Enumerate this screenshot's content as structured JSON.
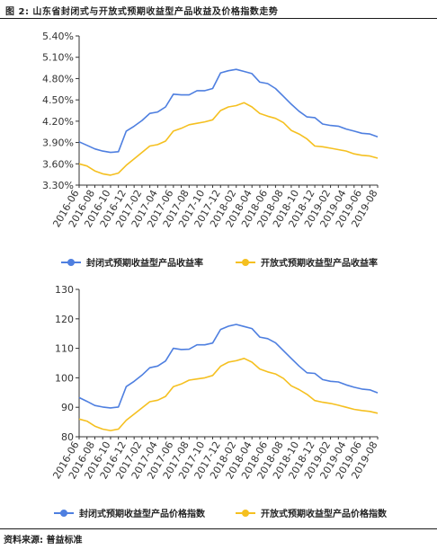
{
  "header": {
    "title": "图 2: 山东省封闭式与开放式预期收益型产品收益及价格指数走势"
  },
  "footer": {
    "source": "资料来源: 普益标准"
  },
  "colors": {
    "blue": "#4E7FE0",
    "orange": "#F5C020"
  },
  "chart_data": [
    {
      "type": "line",
      "x": [
        "2016-06",
        "2016-07",
        "2016-08",
        "2016-09",
        "2016-10",
        "2016-11",
        "2016-12",
        "2017-01",
        "2017-02",
        "2017-03",
        "2017-04",
        "2017-05",
        "2017-06",
        "2017-07",
        "2017-08",
        "2017-09",
        "2017-10",
        "2017-11",
        "2017-12",
        "2018-01",
        "2018-02",
        "2018-03",
        "2018-04",
        "2018-05",
        "2018-06",
        "2018-07",
        "2018-08",
        "2018-09",
        "2018-10",
        "2018-11",
        "2018-12",
        "2019-01",
        "2019-02",
        "2019-03",
        "2019-04",
        "2019-05",
        "2019-06",
        "2019-07",
        "2019-08"
      ],
      "x_tick_labels": [
        "2016-06",
        "2016-08",
        "2016-10",
        "2016-12",
        "2017-02",
        "2017-04",
        "2017-06",
        "2017-08",
        "2017-10",
        "2017-12",
        "2018-02",
        "2018-04",
        "2018-06",
        "2018-08",
        "2018-10",
        "2018-12",
        "2019-02",
        "2019-04",
        "2019-06",
        "2019-08"
      ],
      "y_tick_labels": [
        "3.30%",
        "3.60%",
        "3.90%",
        "4.20%",
        "4.50%",
        "4.80%",
        "5.10%",
        "5.40%"
      ],
      "ylim": [
        3.3,
        5.4
      ],
      "yticks": [
        3.3,
        3.6,
        3.9,
        4.2,
        4.5,
        4.8,
        5.1,
        5.4
      ],
      "grid": false,
      "legend_position": "bottom",
      "series": [
        {
          "name": "封闭式预期收益型产品收益率",
          "color": "#4E7FE0",
          "values": [
            3.91,
            3.86,
            3.81,
            3.78,
            3.76,
            3.77,
            4.06,
            4.13,
            4.21,
            4.31,
            4.33,
            4.4,
            4.58,
            4.57,
            4.57,
            4.63,
            4.63,
            4.66,
            4.88,
            4.91,
            4.93,
            4.9,
            4.87,
            4.75,
            4.73,
            4.66,
            4.55,
            4.44,
            4.34,
            4.26,
            4.25,
            4.16,
            4.14,
            4.13,
            4.09,
            4.06,
            4.03,
            4.02,
            3.98
          ]
        },
        {
          "name": "开放式预期收益型产品收益率",
          "color": "#F5C020",
          "values": [
            3.6,
            3.57,
            3.5,
            3.46,
            3.44,
            3.47,
            3.58,
            3.67,
            3.76,
            3.85,
            3.87,
            3.92,
            4.06,
            4.1,
            4.15,
            4.17,
            4.19,
            4.22,
            4.35,
            4.4,
            4.42,
            4.46,
            4.4,
            4.31,
            4.27,
            4.24,
            4.18,
            4.07,
            4.02,
            3.95,
            3.85,
            3.84,
            3.82,
            3.8,
            3.78,
            3.74,
            3.72,
            3.71,
            3.68
          ]
        }
      ]
    },
    {
      "type": "line",
      "x": [
        "2016-06",
        "2016-07",
        "2016-08",
        "2016-09",
        "2016-10",
        "2016-11",
        "2016-12",
        "2017-01",
        "2017-02",
        "2017-03",
        "2017-04",
        "2017-05",
        "2017-06",
        "2017-07",
        "2017-08",
        "2017-09",
        "2017-10",
        "2017-11",
        "2017-12",
        "2018-01",
        "2018-02",
        "2018-03",
        "2018-04",
        "2018-05",
        "2018-06",
        "2018-07",
        "2018-08",
        "2018-09",
        "2018-10",
        "2018-11",
        "2018-12",
        "2019-01",
        "2019-02",
        "2019-03",
        "2019-04",
        "2019-05",
        "2019-06",
        "2019-07",
        "2019-08"
      ],
      "x_tick_labels": [
        "2016-06",
        "2016-08",
        "2016-10",
        "2016-12",
        "2017-02",
        "2017-04",
        "2017-06",
        "2017-08",
        "2017-10",
        "2017-12",
        "2018-02",
        "2018-04",
        "2018-06",
        "2018-08",
        "2018-10",
        "2018-12",
        "2019-02",
        "2019-04",
        "2019-06",
        "2019-08"
      ],
      "y_tick_labels": [
        "80",
        "90",
        "100",
        "110",
        "120",
        "130"
      ],
      "ylim": [
        80,
        130
      ],
      "yticks": [
        80,
        90,
        100,
        110,
        120,
        130
      ],
      "grid": false,
      "legend_position": "bottom",
      "series": [
        {
          "name": "封闭式预期收益型产品价格指数",
          "color": "#4E7FE0",
          "values": [
            93.3,
            92.0,
            90.6,
            90.1,
            89.8,
            90.1,
            97.0,
            98.8,
            100.9,
            103.4,
            104.0,
            105.7,
            110.0,
            109.6,
            109.7,
            111.2,
            111.2,
            111.8,
            116.4,
            117.5,
            118.1,
            117.4,
            116.7,
            113.8,
            113.3,
            111.9,
            109.2,
            106.6,
            104.0,
            101.7,
            101.5,
            99.4,
            98.8,
            98.6,
            97.6,
            96.8,
            96.2,
            95.9,
            94.9
          ]
        },
        {
          "name": "开放式预期收益型产品价格指数",
          "color": "#F5C020",
          "values": [
            86.0,
            85.3,
            83.6,
            82.6,
            82.1,
            82.6,
            85.6,
            87.7,
            89.8,
            91.9,
            92.4,
            93.7,
            97.0,
            97.9,
            99.2,
            99.6,
            100.0,
            100.8,
            103.9,
            105.3,
            105.8,
            106.6,
            105.3,
            103.0,
            102.0,
            101.3,
            99.8,
            97.3,
            96.0,
            94.4,
            92.3,
            91.7,
            91.3,
            90.7,
            90.0,
            89.3,
            88.9,
            88.6,
            88.0
          ]
        }
      ]
    }
  ]
}
